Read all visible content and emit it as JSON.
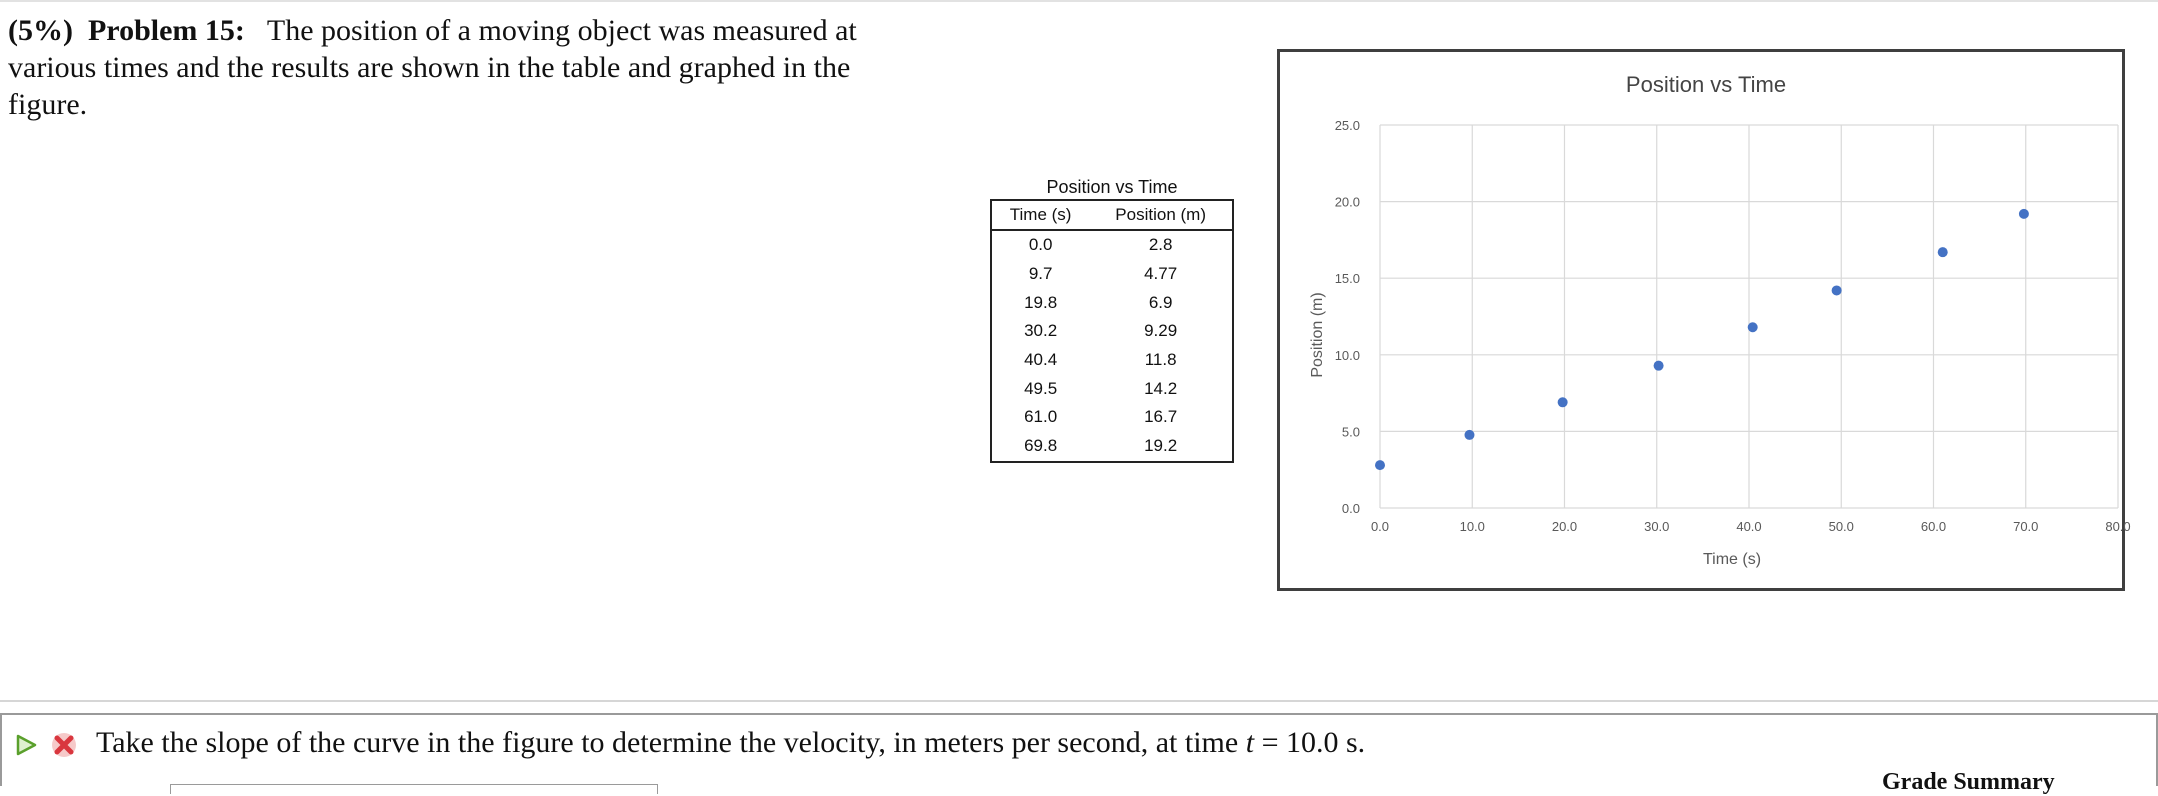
{
  "problem": {
    "weight": "(5%)",
    "label": "Problem 15:",
    "text": "The position of a moving object was measured at various times and the results are shown in the table and graphed in the figure."
  },
  "table": {
    "caption": "Position vs Time",
    "headers": [
      "Time (s)",
      "Position (m)"
    ],
    "rows": [
      [
        "0.0",
        "2.8"
      ],
      [
        "9.7",
        "4.77"
      ],
      [
        "19.8",
        "6.9"
      ],
      [
        "30.2",
        "9.29"
      ],
      [
        "40.4",
        "11.8"
      ],
      [
        "49.5",
        "14.2"
      ],
      [
        "61.0",
        "16.7"
      ],
      [
        "69.8",
        "19.2"
      ]
    ]
  },
  "chart_data": {
    "type": "scatter",
    "title": "Position vs Time",
    "xlabel": "Time (s)",
    "ylabel": "Position (m)",
    "xlim": [
      0,
      80
    ],
    "ylim": [
      0,
      25
    ],
    "x_ticks": [
      "0.0",
      "10.0",
      "20.0",
      "30.0",
      "40.0",
      "50.0",
      "60.0",
      "70.0",
      "80.0"
    ],
    "y_ticks": [
      "0.0",
      "5.0",
      "10.0",
      "15.0",
      "20.0",
      "25.0"
    ],
    "grid": true,
    "marker_color": "#4472c4",
    "x": [
      0.0,
      9.7,
      19.8,
      30.2,
      40.4,
      49.5,
      61.0,
      69.8
    ],
    "y": [
      2.8,
      4.77,
      6.9,
      9.29,
      11.8,
      14.2,
      16.7,
      19.2
    ]
  },
  "question": {
    "prefix": "Take the slope of the curve in the figure to determine the velocity, in meters per second, at time",
    "variable": "t",
    "suffix": "= 10.0 s.",
    "play_icon": "play-triangle-icon",
    "status_icon": "red-x-icon"
  },
  "grade_summary": "Grade Summary"
}
